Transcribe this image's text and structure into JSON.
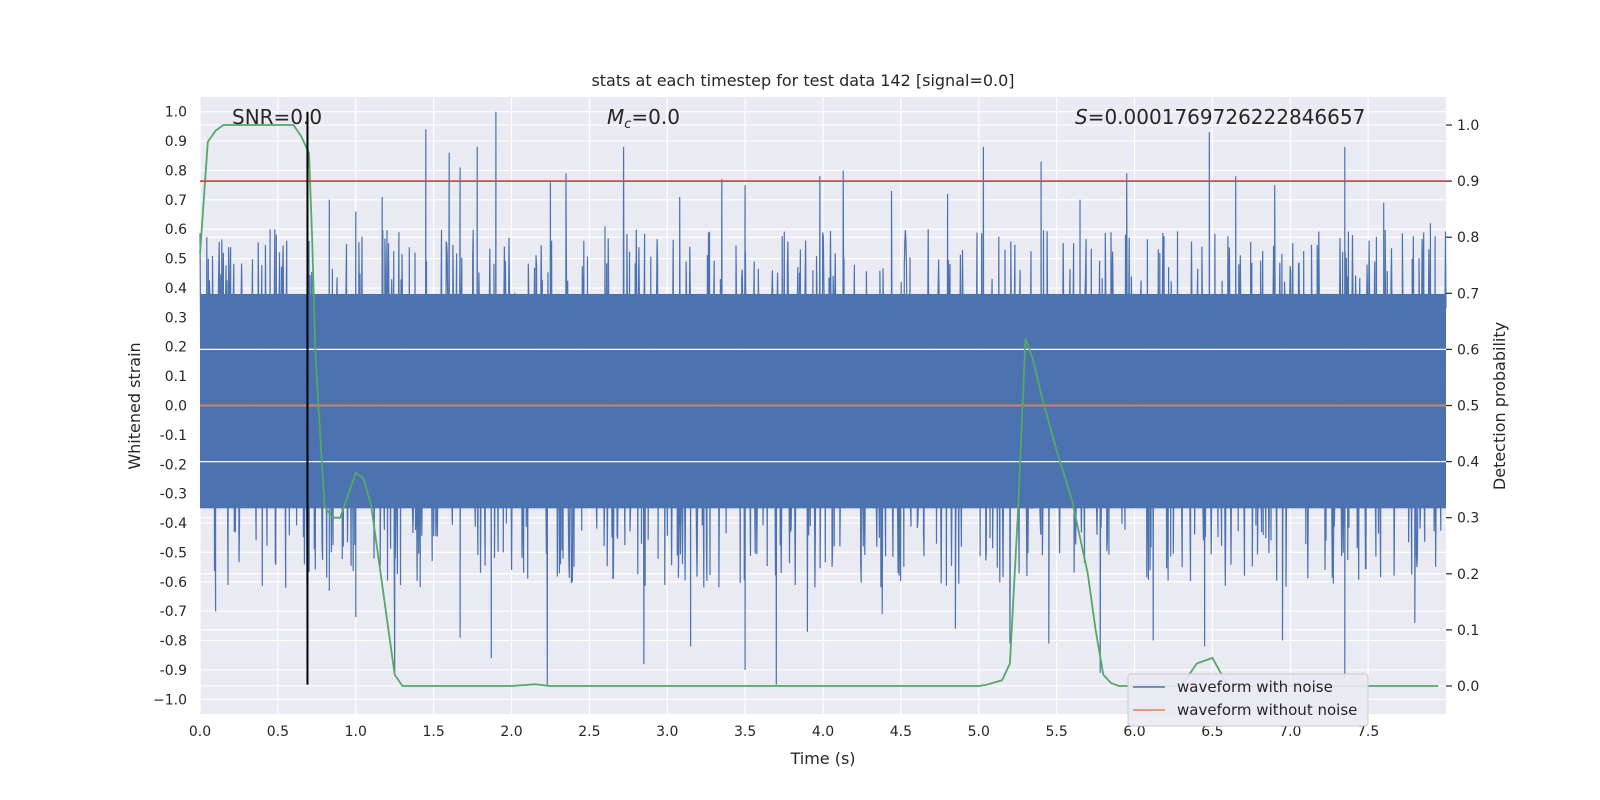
{
  "chart_data": {
    "type": "line",
    "title": "stats at each timestep for test data 142 [signal=0.0]",
    "xlabel": "Time (s)",
    "ylabel_left": "Whitened strain",
    "ylabel_right": "Detection probability",
    "xlim": [
      0.0,
      8.0
    ],
    "ylim_left": [
      -1.05,
      1.05
    ],
    "ylim_right": [
      -0.05,
      1.05
    ],
    "x_ticks": [
      0.0,
      0.5,
      1.0,
      1.5,
      2.0,
      2.5,
      3.0,
      3.5,
      4.0,
      4.5,
      5.0,
      5.5,
      6.0,
      6.5,
      7.0,
      7.5
    ],
    "x_tick_labels": [
      "0.0",
      "0.5",
      "1.0",
      "1.5",
      "2.0",
      "2.5",
      "3.0",
      "3.5",
      "4.0",
      "4.5",
      "5.0",
      "5.5",
      "6.0",
      "6.5",
      "7.0",
      "7.5"
    ],
    "y_left_ticks": [
      1.0,
      0.9,
      0.8,
      0.7,
      0.6,
      0.5,
      0.4,
      0.3,
      0.2,
      0.1,
      0.0,
      -0.1,
      -0.2,
      -0.3,
      -0.4,
      -0.5,
      -0.6,
      -0.7,
      -0.8,
      -0.9,
      -1.0
    ],
    "y_left_tick_labels": [
      "1.0",
      "0.9",
      "0.8",
      "0.7",
      "0.6",
      "0.5",
      "0.4",
      "0.3",
      "0.2",
      "0.1",
      "0.0",
      "-0.1",
      "-0.2",
      "-0.3",
      "-0.4",
      "-0.5",
      "-0.6",
      "-0.7",
      "-0.8",
      "-0.9",
      "−1.0"
    ],
    "y_right_ticks": [
      1.0,
      0.9,
      0.8,
      0.7,
      0.6,
      0.5,
      0.4,
      0.3,
      0.2,
      0.1,
      0.0
    ],
    "y_right_tick_labels": [
      "1.0",
      "0.9",
      "0.8",
      "0.7",
      "0.6",
      "0.5",
      "0.4",
      "0.3",
      "0.2",
      "0.1",
      "0.0"
    ],
    "annotations": {
      "snr": "SNR=0.0",
      "mc_symbol": "M",
      "mc_sub": "c",
      "mc_value": "=0.0",
      "s_symbol": "S",
      "s_value": "=0.0001769726222846657"
    },
    "series": [
      {
        "name": "waveform with noise",
        "color": "#4c72b0",
        "axis": "left",
        "core_band": [
          -0.35,
          0.38
        ],
        "peaks": [
          [
            0.15,
            0.52
          ],
          [
            0.45,
            0.6
          ],
          [
            0.7,
            0.56
          ],
          [
            0.83,
            0.7
          ],
          [
            1.0,
            0.66
          ],
          [
            1.17,
            0.71
          ],
          [
            1.45,
            0.94
          ],
          [
            1.6,
            0.86
          ],
          [
            1.67,
            0.81
          ],
          [
            1.78,
            0.88
          ],
          [
            1.9,
            1.0
          ],
          [
            2.25,
            0.76
          ],
          [
            2.35,
            0.79
          ],
          [
            2.6,
            0.61
          ],
          [
            2.72,
            0.88
          ],
          [
            3.08,
            0.71
          ],
          [
            3.35,
            0.77
          ],
          [
            3.5,
            0.75
          ],
          [
            3.98,
            0.78
          ],
          [
            4.13,
            0.8
          ],
          [
            4.44,
            0.73
          ],
          [
            4.8,
            0.72
          ],
          [
            5.03,
            0.88
          ],
          [
            5.4,
            0.83
          ],
          [
            5.65,
            0.7
          ],
          [
            5.95,
            0.79
          ],
          [
            6.48,
            0.93
          ],
          [
            6.65,
            0.78
          ],
          [
            6.9,
            0.75
          ],
          [
            7.35,
            0.88
          ],
          [
            7.6,
            0.69
          ],
          [
            7.9,
            0.62
          ]
        ],
        "troughs": [
          [
            0.1,
            -0.7
          ],
          [
            0.55,
            -0.62
          ],
          [
            0.83,
            -0.63
          ],
          [
            1.0,
            -0.72
          ],
          [
            1.25,
            -0.91
          ],
          [
            1.67,
            -0.79
          ],
          [
            1.87,
            -0.86
          ],
          [
            2.23,
            -0.95
          ],
          [
            2.85,
            -0.88
          ],
          [
            3.15,
            -0.82
          ],
          [
            3.5,
            -0.9
          ],
          [
            3.7,
            -0.95
          ],
          [
            3.9,
            -0.77
          ],
          [
            4.38,
            -0.71
          ],
          [
            4.85,
            -0.76
          ],
          [
            5.2,
            -0.81
          ],
          [
            5.45,
            -0.81
          ],
          [
            5.78,
            -0.91
          ],
          [
            6.12,
            -0.8
          ],
          [
            6.45,
            -0.82
          ],
          [
            6.95,
            -0.8
          ],
          [
            7.35,
            -0.93
          ],
          [
            7.8,
            -0.74
          ]
        ]
      },
      {
        "name": "waveform without noise",
        "color": "#dd8452",
        "axis": "left",
        "x": [
          0.0,
          8.0
        ],
        "y": [
          0.0,
          0.0
        ]
      },
      {
        "color": "#55a868",
        "axis": "right",
        "x": [
          0.0,
          0.05,
          0.1,
          0.15,
          0.2,
          0.3,
          0.4,
          0.5,
          0.6,
          0.65,
          0.7,
          0.72,
          0.74,
          0.76,
          0.8,
          0.85,
          0.9,
          1.0,
          1.05,
          1.1,
          1.2,
          1.25,
          1.3,
          1.4,
          1.5,
          2.0,
          2.15,
          2.25,
          2.5,
          3.0,
          4.0,
          5.0,
          5.05,
          5.15,
          5.2,
          5.25,
          5.3,
          5.35,
          5.4,
          5.5,
          5.6,
          5.7,
          5.75,
          5.8,
          5.85,
          5.9,
          6.0,
          6.3,
          6.4,
          6.5,
          6.6,
          7.0,
          7.5,
          7.95
        ],
        "y": [
          0.77,
          0.97,
          0.99,
          1.0,
          1.0,
          1.0,
          1.0,
          1.0,
          1.0,
          0.98,
          0.95,
          0.8,
          0.6,
          0.5,
          0.32,
          0.3,
          0.3,
          0.38,
          0.37,
          0.32,
          0.12,
          0.02,
          0.0,
          0.0,
          0.0,
          0.0,
          0.003,
          0.0,
          0.0,
          0.0,
          0.0,
          0.0,
          0.002,
          0.01,
          0.04,
          0.3,
          0.62,
          0.58,
          0.52,
          0.42,
          0.33,
          0.2,
          0.1,
          0.02,
          0.005,
          0.0,
          0.0,
          0.0,
          0.04,
          0.05,
          0.0,
          0.0,
          0.0,
          0.0
        ]
      },
      {
        "color": "#c44e52",
        "axis": "right",
        "x": [
          0.0,
          8.0
        ],
        "y": [
          0.9,
          0.9
        ]
      }
    ],
    "vline": {
      "x": 0.69,
      "color": "#000000",
      "y_from": -0.95,
      "y_to": 1.0
    },
    "legend": {
      "placement": "lower-right",
      "entries": [
        "waveform with noise",
        "waveform without noise"
      ]
    },
    "grid": true,
    "colors": {
      "axes_bg": "#eaeaf2",
      "grid": "#ffffff"
    }
  }
}
